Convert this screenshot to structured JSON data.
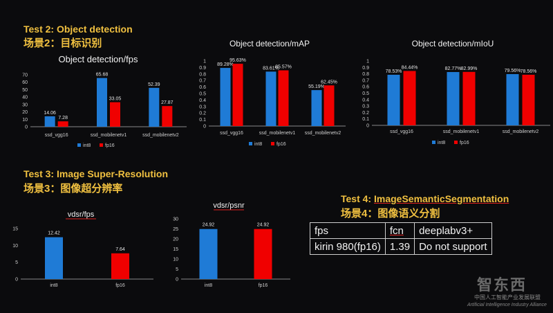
{
  "colors": {
    "int8": "#1f7bd6",
    "fp16": "#f00000",
    "heading": "#f0c040"
  },
  "headings": {
    "t2_en": "Test 2: Object detection",
    "t2_zh": "场景2：目标识别",
    "t3_en": "Test 3: Image Super-Resolution",
    "t3_zh": "场景3：图像超分辨率",
    "t4_en_prefix": "Test 4: ",
    "t4_en_main": "ImageSemanticSegmentation",
    "t4_zh": "场景4：图像语义分割"
  },
  "legend": {
    "int8": "int8",
    "fp16": "fp16"
  },
  "table": {
    "rows": [
      [
        "fps",
        "fcn",
        "deeplabv3+"
      ],
      [
        "kirin 980(fp16)",
        "1.39",
        "Do not support"
      ]
    ]
  },
  "watermark": {
    "brand": "智东西",
    "zh": "中国人工智能产业发展联盟",
    "en": "Artificial Intelligence Industry Alliance"
  },
  "chart_data": [
    {
      "id": "od-fps",
      "type": "bar",
      "title": "Object detection/fps",
      "categories": [
        "ssd_vgg16",
        "ssd_mobilenetv1",
        "ssd_mobilenetv2"
      ],
      "series": [
        {
          "name": "int8",
          "values": [
            14.06,
            65.68,
            52.39
          ],
          "labels": [
            "14.06",
            "65.68",
            "52.39"
          ]
        },
        {
          "name": "fp16",
          "values": [
            7.28,
            33.05,
            27.87
          ],
          "labels": [
            "7.28",
            "33.05",
            "27.87"
          ]
        }
      ],
      "ylim": [
        0,
        70
      ],
      "yticks": [
        "0",
        "10",
        "20",
        "30",
        "40",
        "50",
        "60",
        "70"
      ],
      "legend": "bottom"
    },
    {
      "id": "od-map",
      "type": "bar",
      "title": "Object detection/mAP",
      "categories": [
        "ssd_vgg16",
        "ssd_mobilenetv1",
        "ssd_mobilenetv2"
      ],
      "series": [
        {
          "name": "int8",
          "values": [
            0.8928,
            0.8361,
            0.5519
          ],
          "labels": [
            "89.28%",
            "83.61%",
            "55.19%"
          ]
        },
        {
          "name": "fp16",
          "values": [
            0.9563,
            0.8557,
            0.6245
          ],
          "labels": [
            "95.63%",
            "85.57%",
            "62.45%"
          ]
        }
      ],
      "ylim": [
        0,
        1
      ],
      "yticks": [
        "0",
        "0.1",
        "0.2",
        "0.3",
        "0.4",
        "0.5",
        "0.6",
        "0.7",
        "0.8",
        "0.9",
        "1"
      ],
      "legend": "bottom"
    },
    {
      "id": "od-miou",
      "type": "bar",
      "title": "Object detection/mIoU",
      "categories": [
        "ssd_vgg16",
        "ssd_mobilenetv1",
        "ssd_mobilenetv2"
      ],
      "series": [
        {
          "name": "int8",
          "values": [
            0.7853,
            0.8277,
            0.7956
          ],
          "labels": [
            "78.53%",
            "82.77%",
            "79.56%"
          ]
        },
        {
          "name": "fp16",
          "values": [
            0.8444,
            0.8299,
            0.7856
          ],
          "labels": [
            "84.44%",
            "82.99%",
            "78.56%"
          ]
        }
      ],
      "ylim": [
        0,
        1
      ],
      "yticks": [
        "0",
        "0.1",
        "0.2",
        "0.3",
        "0.4",
        "0.5",
        "0.6",
        "0.7",
        "0.8",
        "0.9",
        "1"
      ],
      "legend": "bottom"
    },
    {
      "id": "sr-fps",
      "type": "bar",
      "title": "vdsr/fps",
      "categories": [
        "int8",
        "fp16"
      ],
      "bars": [
        {
          "series": "int8",
          "value": 12.42,
          "label": "12.42"
        },
        {
          "series": "fp16",
          "value": 7.64,
          "label": "7.64"
        }
      ],
      "ylim": [
        0,
        15
      ],
      "yticks": [
        "0",
        "5",
        "10",
        "15"
      ]
    },
    {
      "id": "sr-psnr",
      "type": "bar",
      "title": "vdsr/psnr",
      "categories": [
        "int8",
        "fp16"
      ],
      "bars": [
        {
          "series": "int8",
          "value": 24.92,
          "label": "24.92"
        },
        {
          "series": "fp16",
          "value": 24.92,
          "label": "24.92"
        }
      ],
      "ylim": [
        0,
        30
      ],
      "yticks": [
        "0",
        "5",
        "10",
        "15",
        "20",
        "25",
        "30"
      ]
    }
  ]
}
